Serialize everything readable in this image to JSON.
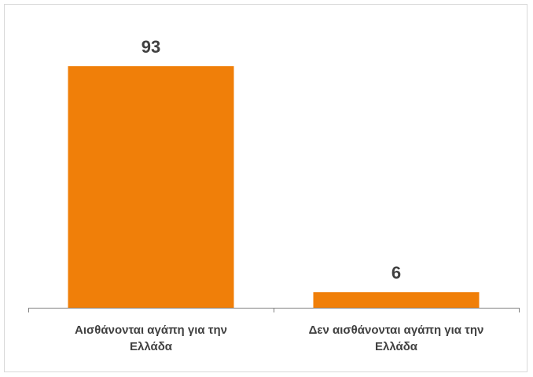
{
  "chart_data": {
    "type": "bar",
    "categories": [
      [
        "Αισθάνονται αγάπη για την",
        "Ελλάδα"
      ],
      [
        "Δεν αισθάνονται αγάπη για την",
        "Ελλάδα"
      ]
    ],
    "values": [
      93,
      6
    ],
    "data_labels": [
      "93",
      "6"
    ],
    "ylim": [
      0,
      100
    ],
    "bar_color": "#f07f09",
    "axis_color": "#808080",
    "grid": false,
    "legend": "none"
  }
}
